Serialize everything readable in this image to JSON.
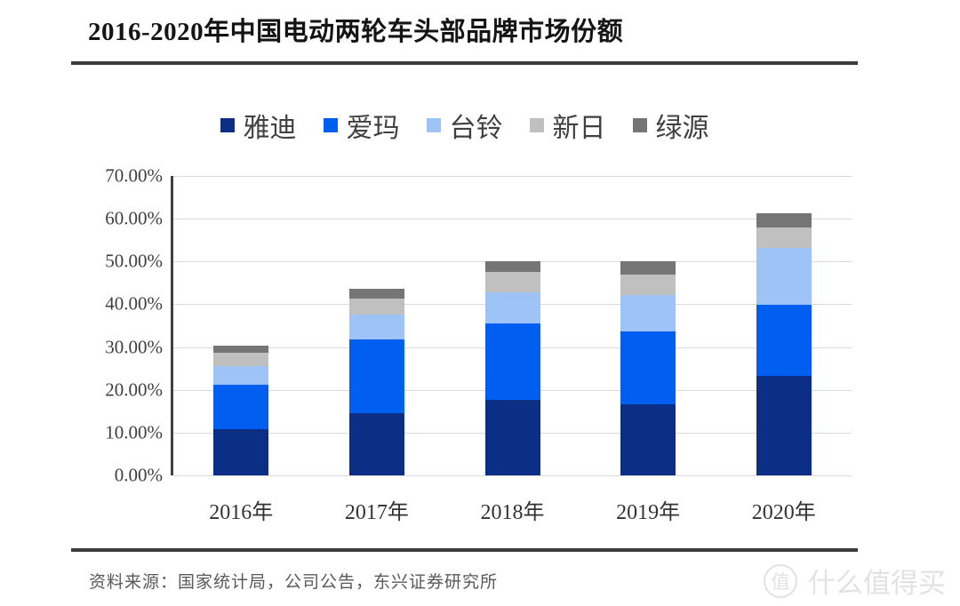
{
  "title": "2016-2020年中国电动两轮车头部品牌市场份额",
  "source_note": "资料来源：国家统计局，公司公告，东兴证券研究所",
  "watermark": {
    "badge": "值",
    "text": "什么值得买"
  },
  "colors": {
    "rule": "#3c3c3c",
    "grid": "#dadada",
    "axis": "#404040",
    "yadea_navy": "#0a2f85",
    "aima_blue": "#005ff0",
    "tailg_light_blue": "#9dc3f7",
    "sunra_light_gray": "#c0c0c0",
    "luyuan_dark_gray": "#757575"
  },
  "chart_data": {
    "type": "bar",
    "stacked": true,
    "title": "2016-2020年中国电动两轮车头部品牌市场份额",
    "categories": [
      "2016年",
      "2017年",
      "2018年",
      "2019年",
      "2020年"
    ],
    "series": [
      {
        "name": "雅迪",
        "color": "#0a2f85",
        "values": [
          10.9,
          14.6,
          17.7,
          16.6,
          23.2
        ]
      },
      {
        "name": "爱玛",
        "color": "#005ff0",
        "values": [
          10.3,
          17.1,
          17.8,
          17.0,
          16.6
        ]
      },
      {
        "name": "台铃",
        "color": "#9dc3f7",
        "values": [
          4.4,
          6.0,
          7.2,
          8.6,
          13.4
        ]
      },
      {
        "name": "新日",
        "color": "#c0c0c0",
        "values": [
          3.1,
          3.6,
          4.8,
          4.7,
          4.7
        ]
      },
      {
        "name": "绿源",
        "color": "#757575",
        "values": [
          1.7,
          2.4,
          2.6,
          3.1,
          3.3
        ]
      }
    ],
    "stack_totals": [
      30.4,
      43.7,
      50.1,
      50.0,
      61.2
    ],
    "xlabel": "",
    "ylabel": "",
    "ylim": [
      0,
      70
    ],
    "y_ticks": [
      "70.00%",
      "60.00%",
      "50.00%",
      "40.00%",
      "30.00%",
      "20.00%",
      "10.00%",
      "0.00%"
    ],
    "grid": true,
    "legend_position": "top-center"
  }
}
